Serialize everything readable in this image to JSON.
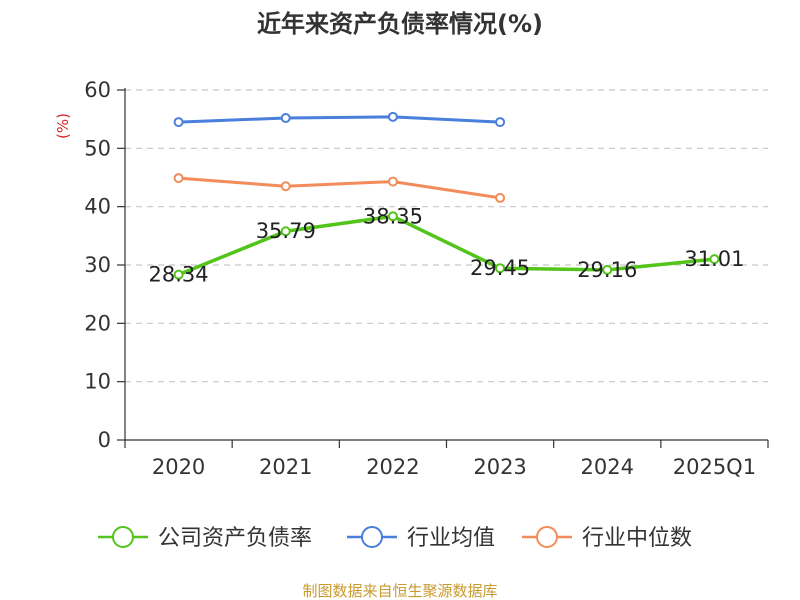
{
  "chart_data": {
    "type": "line",
    "title": "近年来资产负债率情况(%)",
    "unit_label": "(%)",
    "categories": [
      "2020",
      "2021",
      "2022",
      "2023",
      "2024",
      "2025Q1"
    ],
    "y_ticks": [
      "0",
      "10",
      "20",
      "30",
      "40",
      "50",
      "60"
    ],
    "ylim": [
      0,
      60
    ],
    "grid": true,
    "legend_position": "bottom",
    "series": [
      {
        "name": "公司资产负债率",
        "color": "#52c41a",
        "values": [
          28.34,
          35.79,
          38.35,
          29.45,
          29.16,
          31.01
        ],
        "labels": [
          "28.34",
          "35.79",
          "38.35",
          "29.45",
          "29.16",
          "31.01"
        ]
      },
      {
        "name": "行业均值",
        "color": "#4a7fdc",
        "values": [
          54.5,
          55.2,
          55.4,
          54.5,
          null,
          null
        ]
      },
      {
        "name": "行业中位数",
        "color": "#f28c5a",
        "values": [
          44.9,
          43.5,
          44.3,
          41.5,
          null,
          null
        ]
      }
    ],
    "source": "制图数据来自恒生聚源数据库"
  }
}
